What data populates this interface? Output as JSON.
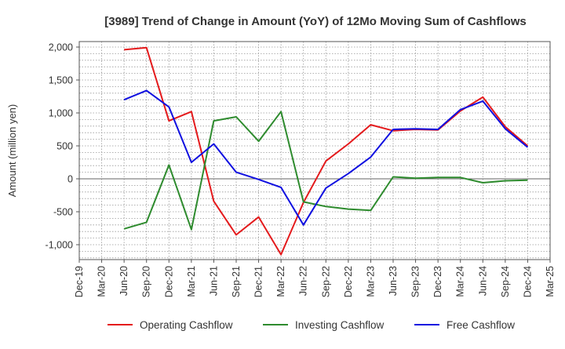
{
  "chart_data": {
    "type": "line",
    "title": "[3989]  Trend of Change in Amount (YoY) of 12Mo Moving Sum of Cashflows",
    "xlabel": "",
    "ylabel": "Amount (million yen)",
    "ylim": [
      -1200,
      2000
    ],
    "yticks": [
      2000,
      1500,
      1000,
      500,
      0,
      -500,
      -1000
    ],
    "ytick_labels": [
      "2,000",
      "1,500",
      "1,000",
      "500",
      "0",
      "-500",
      "-1,000"
    ],
    "grid": true,
    "legend_position": "bottom",
    "categories": [
      "Dec-19",
      "Mar-20",
      "Jun-20",
      "Sep-20",
      "Dec-20",
      "Mar-21",
      "Jun-21",
      "Sep-21",
      "Dec-21",
      "Mar-22",
      "Jun-22",
      "Sep-22",
      "Dec-22",
      "Mar-23",
      "Jun-23",
      "Sep-23",
      "Dec-23",
      "Mar-24",
      "Jun-24",
      "Sep-24",
      "Dec-24",
      "Mar-25"
    ],
    "series": [
      {
        "name": "Operating Cashflow",
        "color": "#e41a1c",
        "values": [
          null,
          null,
          1960,
          1990,
          880,
          1020,
          -340,
          -850,
          -580,
          -1150,
          -360,
          270,
          530,
          820,
          730,
          750,
          740,
          1030,
          1240,
          790,
          500,
          null
        ]
      },
      {
        "name": "Investing Cashflow",
        "color": "#2e8b2e",
        "values": [
          null,
          null,
          -760,
          -660,
          210,
          -770,
          880,
          940,
          570,
          1020,
          -350,
          -420,
          -460,
          -480,
          30,
          10,
          20,
          20,
          -60,
          -30,
          -20,
          null
        ]
      },
      {
        "name": "Free Cashflow",
        "color": "#1010e0",
        "values": [
          null,
          null,
          1200,
          1340,
          1090,
          250,
          530,
          100,
          -10,
          -130,
          -700,
          -140,
          80,
          330,
          750,
          760,
          750,
          1050,
          1180,
          760,
          480,
          null
        ]
      }
    ]
  }
}
